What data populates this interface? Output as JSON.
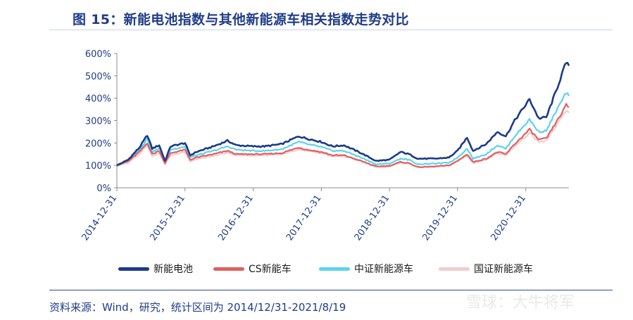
{
  "header": {
    "title": "图 15：新能电池指数与其他新能源车相关指数走势对比"
  },
  "footer": {
    "source": "资料来源：Wind，研究，统计区间为 2014/12/31-2021/8/19",
    "watermark": "雪球：大牛将军"
  },
  "chart_data": {
    "type": "line",
    "title": "",
    "xlabel": "",
    "ylabel": "",
    "xlim": [
      "2014-12-31",
      "2021-08-19"
    ],
    "ylim": [
      0,
      600
    ],
    "x_ticks": [
      "2014-12-31",
      "2015-12-31",
      "2016-12-31",
      "2017-12-31",
      "2018-12-31",
      "2019-12-31",
      "2020-12-31"
    ],
    "y_ticks": [
      "0%",
      "100%",
      "200%",
      "300%",
      "400%",
      "500%",
      "600%"
    ],
    "legend_position": "bottom",
    "grid": false,
    "series": [
      {
        "name": "新能电池",
        "color": "#1B3A8C",
        "points": [
          [
            "2014-12-31",
            100
          ],
          [
            "2015-03-01",
            125
          ],
          [
            "2015-05-01",
            180
          ],
          [
            "2015-06-12",
            235
          ],
          [
            "2015-07-08",
            175
          ],
          [
            "2015-08-15",
            190
          ],
          [
            "2015-09-15",
            120
          ],
          [
            "2015-10-15",
            185
          ],
          [
            "2015-12-31",
            200
          ],
          [
            "2016-01-28",
            145
          ],
          [
            "2016-03-01",
            160
          ],
          [
            "2016-06-01",
            185
          ],
          [
            "2016-08-15",
            210
          ],
          [
            "2016-10-01",
            190
          ],
          [
            "2016-12-31",
            185
          ],
          [
            "2017-03-01",
            185
          ],
          [
            "2017-06-01",
            195
          ],
          [
            "2017-09-01",
            230
          ],
          [
            "2017-10-15",
            220
          ],
          [
            "2017-12-31",
            205
          ],
          [
            "2018-03-01",
            185
          ],
          [
            "2018-05-01",
            190
          ],
          [
            "2018-08-01",
            155
          ],
          [
            "2018-10-20",
            120
          ],
          [
            "2018-12-31",
            125
          ],
          [
            "2019-03-01",
            160
          ],
          [
            "2019-04-15",
            150
          ],
          [
            "2019-06-01",
            130
          ],
          [
            "2019-09-01",
            130
          ],
          [
            "2019-11-15",
            135
          ],
          [
            "2019-12-31",
            165
          ],
          [
            "2020-02-20",
            225
          ],
          [
            "2020-03-23",
            165
          ],
          [
            "2020-06-01",
            195
          ],
          [
            "2020-08-01",
            250
          ],
          [
            "2020-09-15",
            230
          ],
          [
            "2020-11-01",
            300
          ],
          [
            "2021-01-20",
            395
          ],
          [
            "2021-03-10",
            310
          ],
          [
            "2021-04-20",
            315
          ],
          [
            "2021-06-10",
            430
          ],
          [
            "2021-07-20",
            525
          ],
          [
            "2021-08-05",
            560
          ],
          [
            "2021-08-19",
            545
          ]
        ]
      },
      {
        "name": "CS新能车",
        "color": "#E0605E",
        "points": [
          [
            "2014-12-31",
            100
          ],
          [
            "2015-03-01",
            118
          ],
          [
            "2015-05-01",
            160
          ],
          [
            "2015-06-12",
            200
          ],
          [
            "2015-07-08",
            150
          ],
          [
            "2015-08-15",
            165
          ],
          [
            "2015-09-15",
            110
          ],
          [
            "2015-10-15",
            155
          ],
          [
            "2015-12-31",
            170
          ],
          [
            "2016-01-28",
            125
          ],
          [
            "2016-03-01",
            135
          ],
          [
            "2016-06-01",
            150
          ],
          [
            "2016-08-15",
            165
          ],
          [
            "2016-10-01",
            150
          ],
          [
            "2016-12-31",
            150
          ],
          [
            "2017-03-01",
            150
          ],
          [
            "2017-06-01",
            155
          ],
          [
            "2017-09-01",
            180
          ],
          [
            "2017-10-15",
            170
          ],
          [
            "2017-12-31",
            160
          ],
          [
            "2018-03-01",
            145
          ],
          [
            "2018-05-01",
            145
          ],
          [
            "2018-08-01",
            120
          ],
          [
            "2018-10-20",
            95
          ],
          [
            "2018-12-31",
            98
          ],
          [
            "2019-03-01",
            115
          ],
          [
            "2019-04-15",
            110
          ],
          [
            "2019-06-01",
            92
          ],
          [
            "2019-09-01",
            95
          ],
          [
            "2019-11-15",
            100
          ],
          [
            "2019-12-31",
            120
          ],
          [
            "2020-02-20",
            150
          ],
          [
            "2020-03-23",
            115
          ],
          [
            "2020-06-01",
            130
          ],
          [
            "2020-08-01",
            160
          ],
          [
            "2020-09-15",
            150
          ],
          [
            "2020-11-01",
            195
          ],
          [
            "2021-01-20",
            260
          ],
          [
            "2021-03-10",
            215
          ],
          [
            "2021-04-20",
            220
          ],
          [
            "2021-06-10",
            290
          ],
          [
            "2021-07-20",
            345
          ],
          [
            "2021-08-05",
            370
          ],
          [
            "2021-08-19",
            360
          ]
        ]
      },
      {
        "name": "中证新能源车",
        "color": "#5CD2F0",
        "points": [
          [
            "2014-12-31",
            100
          ],
          [
            "2015-03-01",
            120
          ],
          [
            "2015-05-01",
            170
          ],
          [
            "2015-06-12",
            220
          ],
          [
            "2015-07-08",
            160
          ],
          [
            "2015-08-15",
            175
          ],
          [
            "2015-09-15",
            115
          ],
          [
            "2015-10-15",
            170
          ],
          [
            "2015-12-31",
            185
          ],
          [
            "2016-01-28",
            135
          ],
          [
            "2016-03-01",
            145
          ],
          [
            "2016-06-01",
            165
          ],
          [
            "2016-08-15",
            185
          ],
          [
            "2016-10-01",
            170
          ],
          [
            "2016-12-31",
            165
          ],
          [
            "2017-03-01",
            165
          ],
          [
            "2017-06-01",
            172
          ],
          [
            "2017-09-01",
            205
          ],
          [
            "2017-10-15",
            195
          ],
          [
            "2017-12-31",
            182
          ],
          [
            "2018-03-01",
            165
          ],
          [
            "2018-05-01",
            165
          ],
          [
            "2018-08-01",
            135
          ],
          [
            "2018-10-20",
            105
          ],
          [
            "2018-12-31",
            108
          ],
          [
            "2019-03-01",
            130
          ],
          [
            "2019-04-15",
            125
          ],
          [
            "2019-06-01",
            105
          ],
          [
            "2019-09-01",
            108
          ],
          [
            "2019-11-15",
            112
          ],
          [
            "2019-12-31",
            135
          ],
          [
            "2020-02-20",
            175
          ],
          [
            "2020-03-23",
            130
          ],
          [
            "2020-06-01",
            150
          ],
          [
            "2020-08-01",
            190
          ],
          [
            "2020-09-15",
            175
          ],
          [
            "2020-11-01",
            230
          ],
          [
            "2021-01-20",
            305
          ],
          [
            "2021-03-10",
            250
          ],
          [
            "2021-04-20",
            255
          ],
          [
            "2021-06-10",
            340
          ],
          [
            "2021-07-20",
            400
          ],
          [
            "2021-08-05",
            425
          ],
          [
            "2021-08-19",
            410
          ]
        ]
      },
      {
        "name": "国证新能源车",
        "color": "#F2CDCD",
        "points": [
          [
            "2014-12-31",
            100
          ],
          [
            "2015-03-01",
            112
          ],
          [
            "2015-05-01",
            150
          ],
          [
            "2015-06-12",
            190
          ],
          [
            "2015-07-08",
            140
          ],
          [
            "2015-08-15",
            155
          ],
          [
            "2015-09-15",
            105
          ],
          [
            "2015-10-15",
            145
          ],
          [
            "2015-12-31",
            160
          ],
          [
            "2016-01-28",
            118
          ],
          [
            "2016-03-01",
            128
          ],
          [
            "2016-06-01",
            142
          ],
          [
            "2016-08-15",
            158
          ],
          [
            "2016-10-01",
            145
          ],
          [
            "2016-12-31",
            145
          ],
          [
            "2017-03-01",
            145
          ],
          [
            "2017-06-01",
            150
          ],
          [
            "2017-09-01",
            172
          ],
          [
            "2017-10-15",
            165
          ],
          [
            "2017-12-31",
            155
          ],
          [
            "2018-03-01",
            140
          ],
          [
            "2018-05-01",
            142
          ],
          [
            "2018-08-01",
            118
          ],
          [
            "2018-10-20",
            92
          ],
          [
            "2018-12-31",
            95
          ],
          [
            "2019-03-01",
            112
          ],
          [
            "2019-04-15",
            108
          ],
          [
            "2019-06-01",
            92
          ],
          [
            "2019-09-01",
            95
          ],
          [
            "2019-11-15",
            98
          ],
          [
            "2019-12-31",
            118
          ],
          [
            "2020-02-20",
            145
          ],
          [
            "2020-03-23",
            110
          ],
          [
            "2020-06-01",
            125
          ],
          [
            "2020-08-01",
            155
          ],
          [
            "2020-09-15",
            145
          ],
          [
            "2020-11-01",
            185
          ],
          [
            "2021-01-20",
            245
          ],
          [
            "2021-03-10",
            205
          ],
          [
            "2021-04-20",
            210
          ],
          [
            "2021-06-10",
            275
          ],
          [
            "2021-07-20",
            325
          ],
          [
            "2021-08-05",
            345
          ],
          [
            "2021-08-19",
            335
          ]
        ]
      }
    ]
  }
}
